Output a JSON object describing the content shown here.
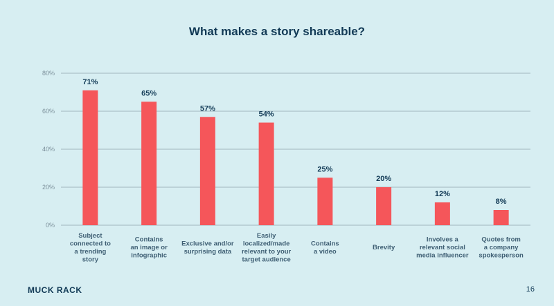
{
  "slide": {
    "title": "What makes a story shareable?",
    "brand": "MUCK RACK",
    "page_number": "16"
  },
  "chart_data": {
    "type": "bar",
    "title": "What makes a story shareable?",
    "categories": [
      [
        "Subject",
        "connected to",
        "a trending",
        "story"
      ],
      [
        "Contains",
        "an image or",
        "infographic"
      ],
      [
        "Exclusive and/or",
        "surprising data"
      ],
      [
        "Easily",
        "localized/made",
        "relevant to your",
        "target audience"
      ],
      [
        "Contains",
        "a video"
      ],
      [
        "Brevity"
      ],
      [
        "Involves a",
        "relevant social",
        "media influencer"
      ],
      [
        "Quotes from",
        "a company",
        "spokesperson"
      ]
    ],
    "values": [
      71,
      65,
      57,
      54,
      25,
      20,
      12,
      8
    ],
    "value_labels": [
      "71%",
      "65%",
      "57%",
      "54%",
      "25%",
      "20%",
      "12%",
      "8%"
    ],
    "ylim": [
      0,
      80
    ],
    "yticks": [
      0,
      20,
      40,
      60,
      80
    ],
    "ytick_labels": [
      "0%",
      "20%",
      "40%",
      "60%",
      "80%"
    ],
    "grid": true,
    "colors": {
      "bar": "#f5565a",
      "grid": "#8fa3ae",
      "text": "#123a56",
      "axis_text": "#7a8e99"
    }
  }
}
